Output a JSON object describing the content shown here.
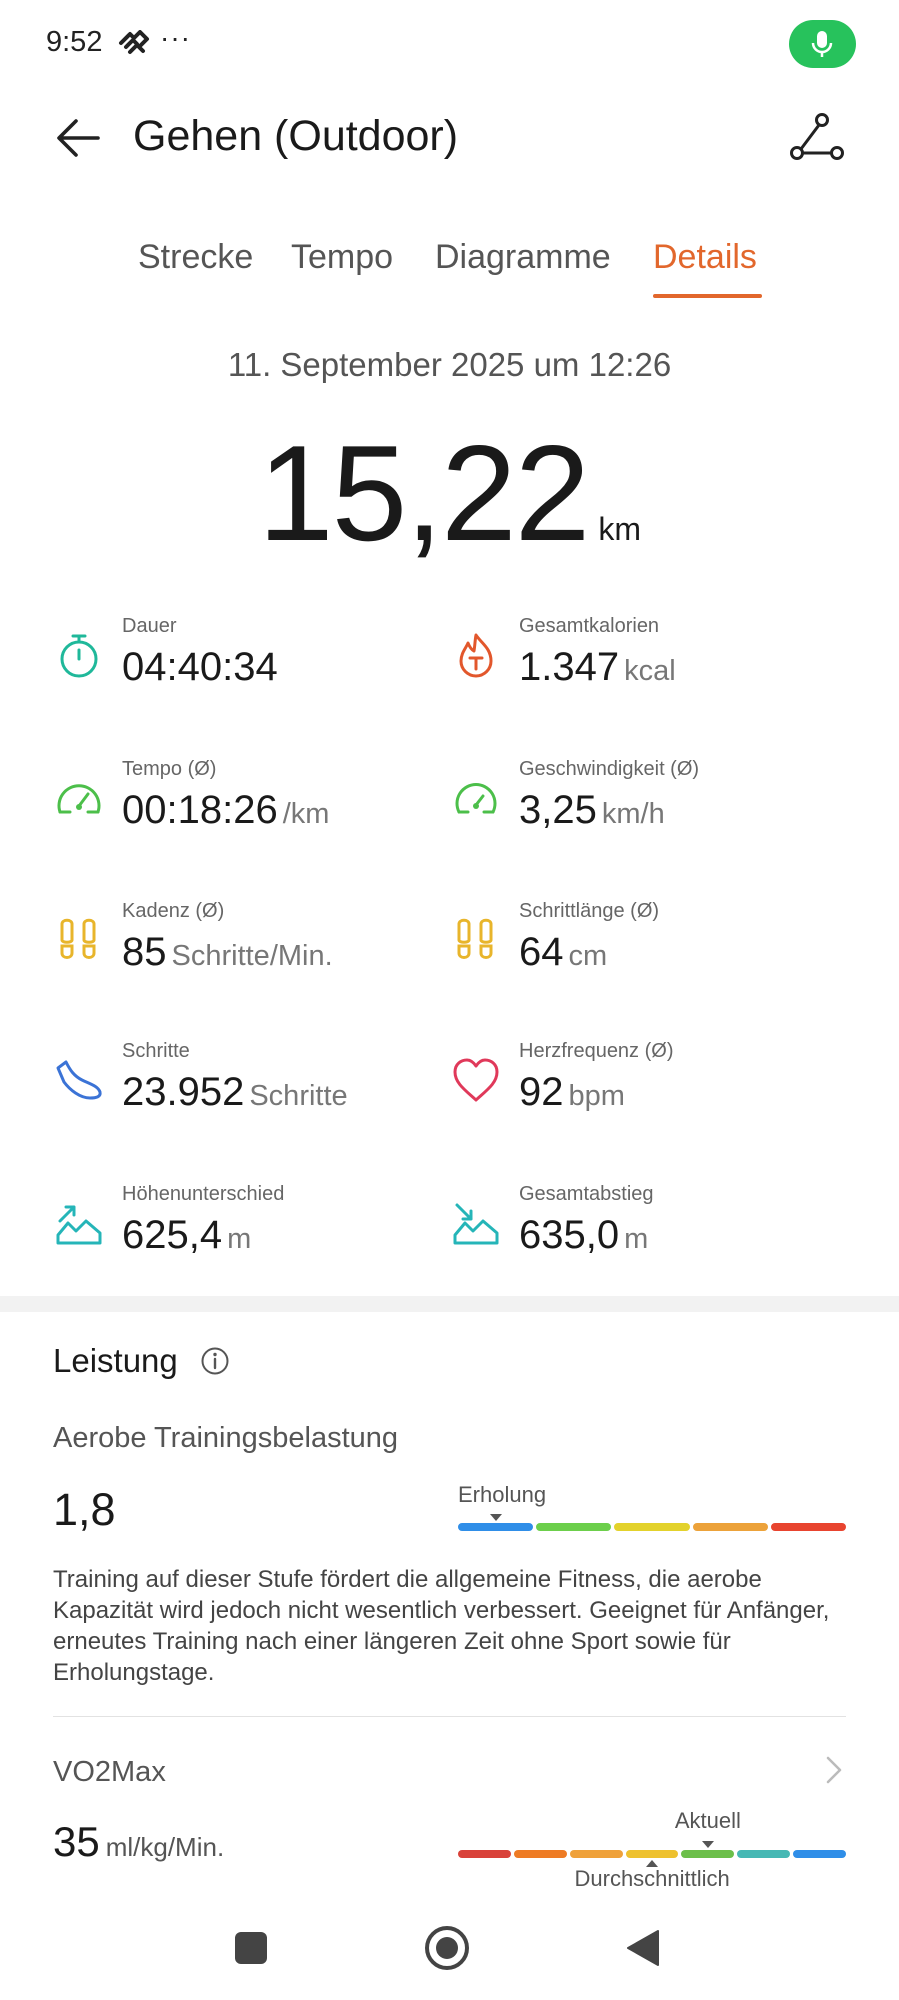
{
  "status": {
    "time": "9:52",
    "dots": "···"
  },
  "header": {
    "title": "Gehen (Outdoor)"
  },
  "tabs": [
    {
      "label": "Strecke"
    },
    {
      "label": "Tempo"
    },
    {
      "label": "Diagramme"
    },
    {
      "label": "Details"
    }
  ],
  "active_tab": "Details",
  "summary": {
    "date": "11. September 2025 um 12:26",
    "distance": "15,22",
    "distance_unit": "km"
  },
  "metrics": [
    {
      "label": "Dauer",
      "value": "04:40:34",
      "unit": "",
      "icon": "stopwatch-icon",
      "color": "#1fb89a"
    },
    {
      "label": "Gesamtkalorien",
      "value": "1.347",
      "unit": "kcal",
      "icon": "flame-icon",
      "color": "#e2572c"
    },
    {
      "label": "Tempo (Ø)",
      "value": "00:18:26",
      "unit": "/km",
      "icon": "pace-gauge-icon",
      "color": "#4cbf4a"
    },
    {
      "label": "Geschwindigkeit (Ø)",
      "value": "3,25",
      "unit": "km/h",
      "icon": "speedometer-icon",
      "color": "#4cbf4a"
    },
    {
      "label": "Kadenz (Ø)",
      "value": "85",
      "unit": "Schritte/Min.",
      "icon": "footprints-icon",
      "color": "#e8b52b"
    },
    {
      "label": "Schrittlänge (Ø)",
      "value": "64",
      "unit": "cm",
      "icon": "footprints-icon",
      "color": "#e8b52b"
    },
    {
      "label": "Schritte",
      "value": "23.952",
      "unit": "Schritte",
      "icon": "shoe-icon",
      "color": "#3b73d6"
    },
    {
      "label": "Herzfrequenz (Ø)",
      "value": "92",
      "unit": "bpm",
      "icon": "heart-icon",
      "color": "#e0395a"
    },
    {
      "label": "Höhenunterschied",
      "value": "625,4",
      "unit": "m",
      "icon": "elevation-gain-icon",
      "color": "#25b5b8"
    },
    {
      "label": "Gesamtabstieg",
      "value": "635,0",
      "unit": "m",
      "icon": "elevation-loss-icon",
      "color": "#25b5b8"
    }
  ],
  "performance": {
    "title": "Leistung",
    "aerobe": {
      "label": "Aerobe Trainingsbelastung",
      "value": "1,8",
      "scale_label": "Erholung",
      "scale_colors": [
        "#2f8ee8",
        "#6ccf4b",
        "#e3d22c",
        "#eca23a",
        "#e8442f"
      ],
      "active_segment": 0,
      "description": "Training auf dieser Stufe fördert die allgemeine Fitness, die aerobe Kapazität wird jedoch nicht wesentlich verbessert. Geeignet für Anfänger, erneutes Training nach einer längeren Zeit ohne Sport sowie für Erholungstage."
    },
    "vo2max": {
      "label": "VO2Max",
      "value": "35",
      "unit": "ml/kg/Min.",
      "current_label": "Aktuell",
      "average_label": "Durchschnittlich",
      "scale_colors": [
        "#d9423a",
        "#ee7b24",
        "#efa13a",
        "#eec12e",
        "#6cbf4a",
        "#46b8b4",
        "#2f8ee8"
      ],
      "current_segment": 4,
      "average_segment": 3
    }
  }
}
